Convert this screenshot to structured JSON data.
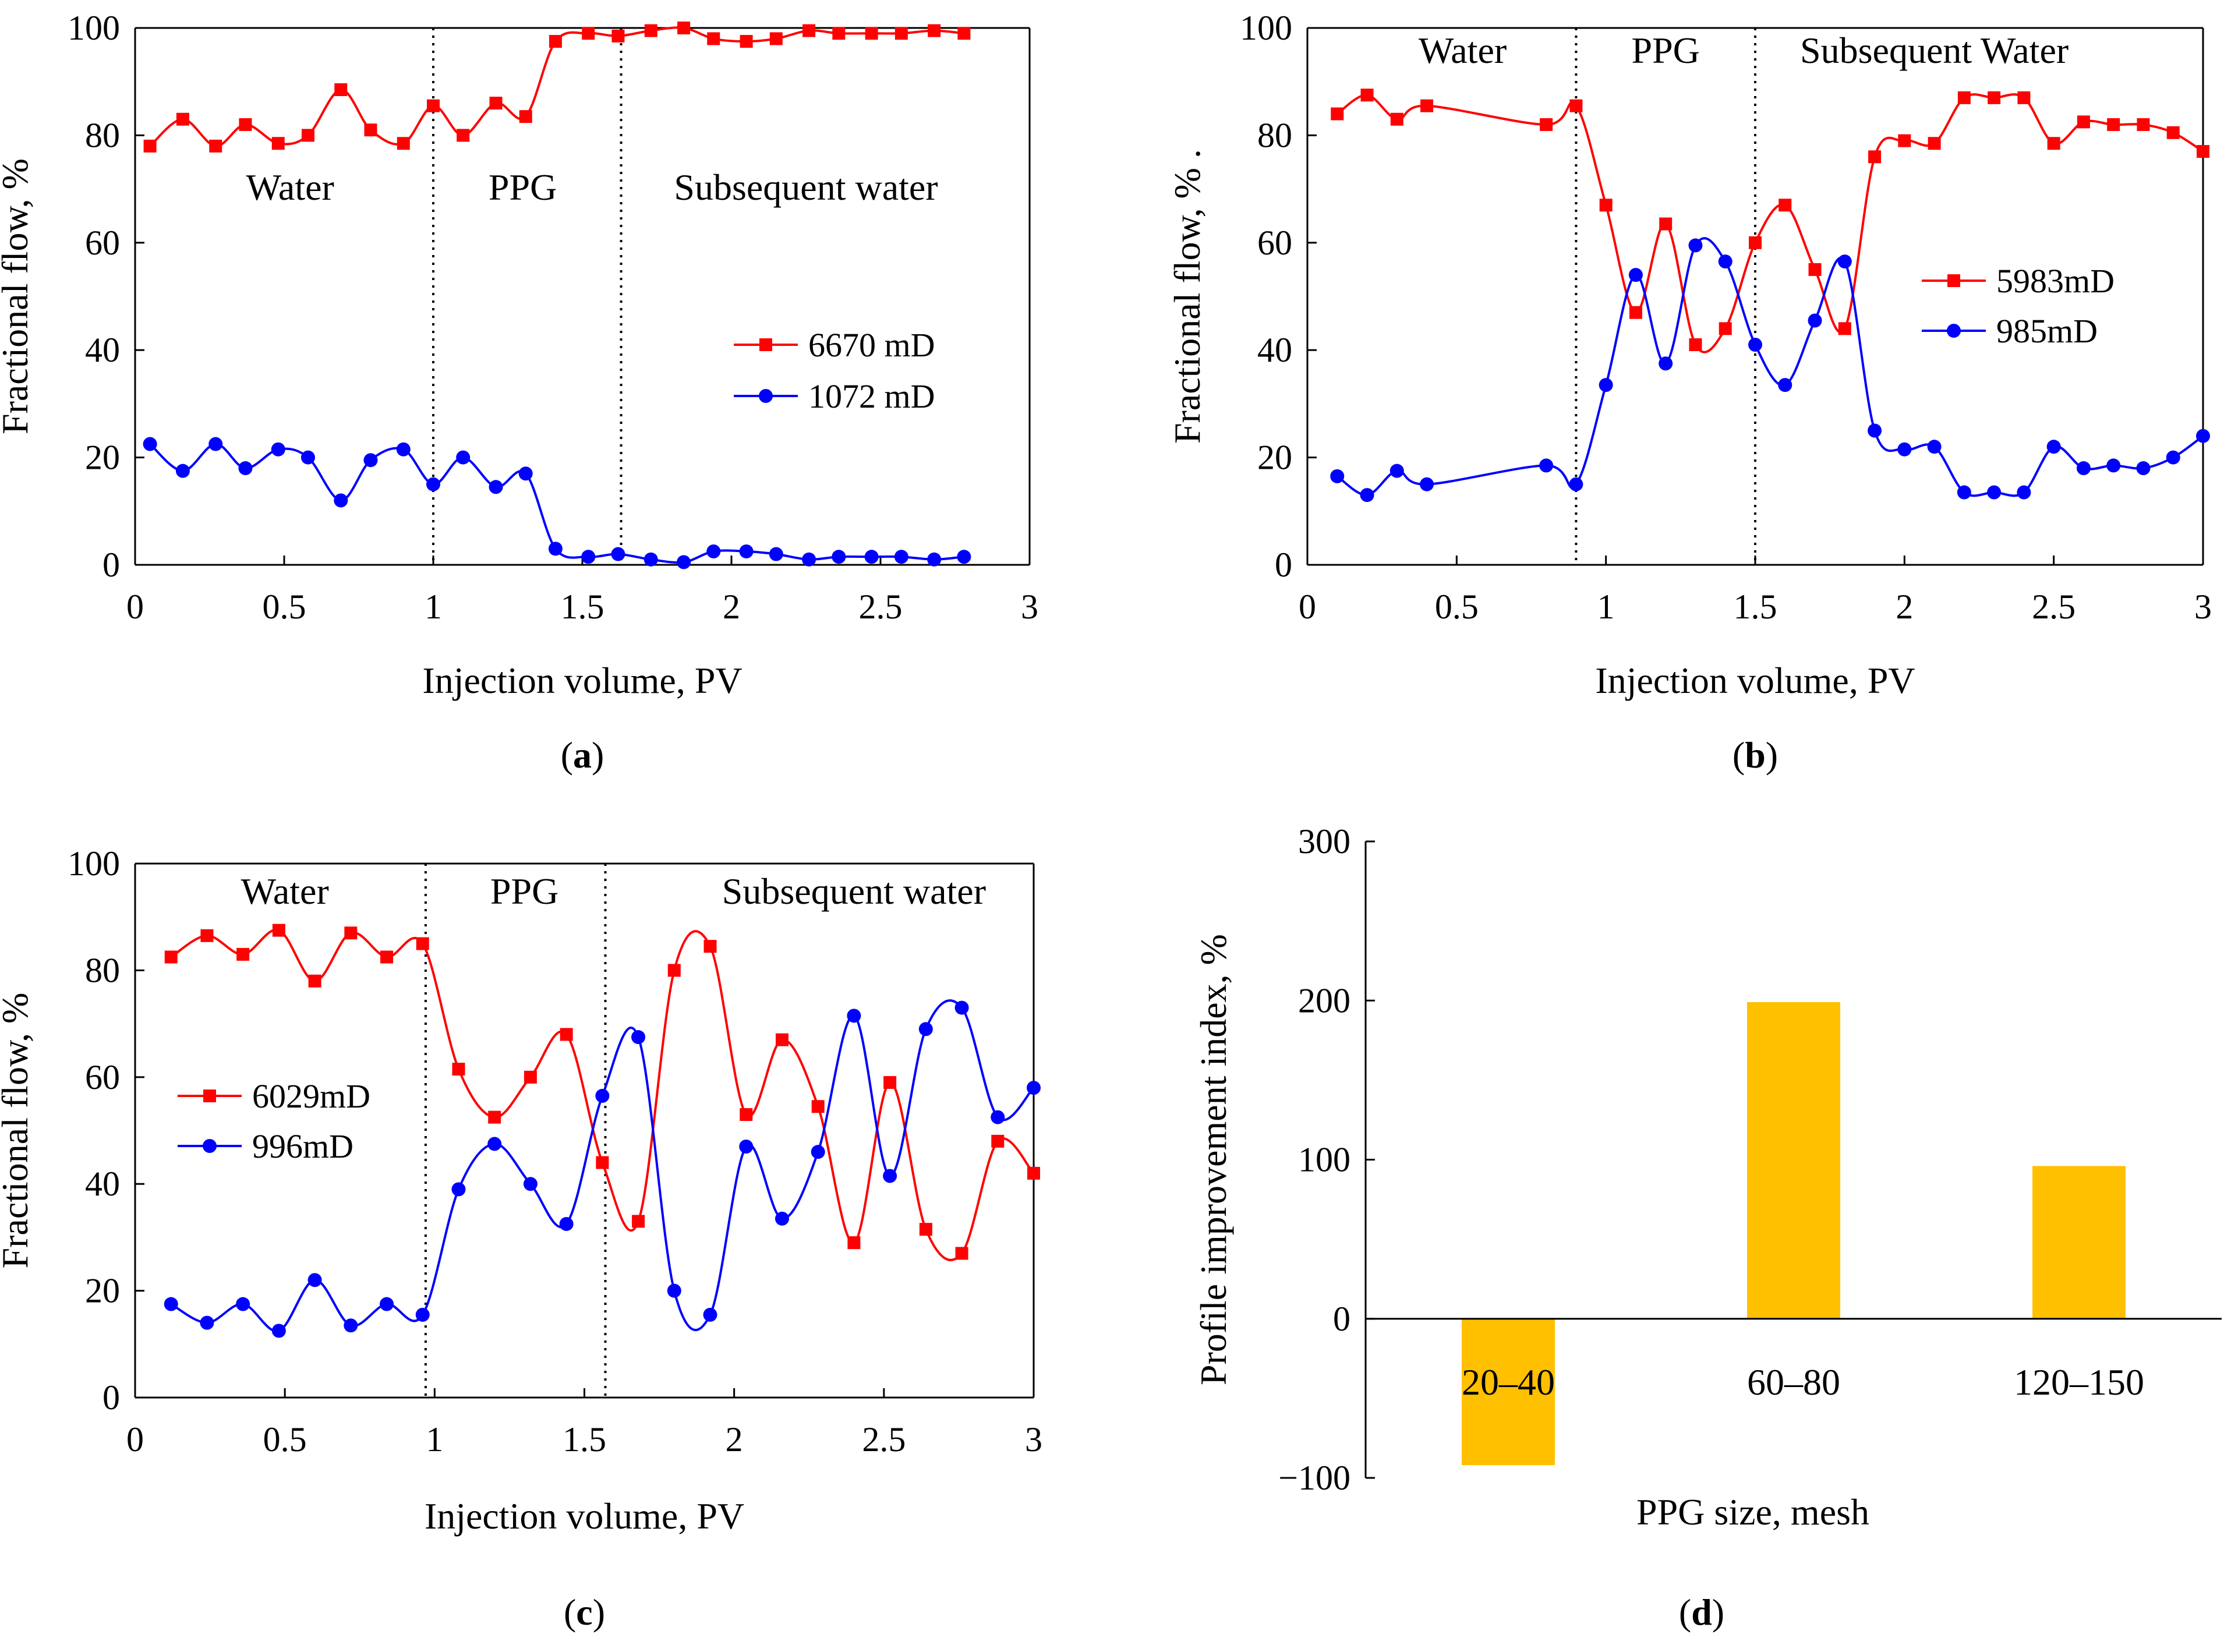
{
  "colors": {
    "series_a": "#ff0000",
    "series_b": "#0000ff",
    "bar": "#ffc000",
    "axis": "#000000"
  },
  "chart_data": [
    {
      "id": "a",
      "type": "line",
      "panel_label": "a",
      "xlabel": "Injection volume, PV",
      "ylabel": "Fractional flow, %",
      "xlim": [
        0,
        3
      ],
      "ylim": [
        0,
        100
      ],
      "xticks": [
        0,
        0.5,
        1,
        1.5,
        2,
        2.5,
        3
      ],
      "xtick_labels": [
        "0",
        "0.5",
        "1",
        "1.5",
        "2",
        "2.5",
        "3"
      ],
      "yticks": [
        0,
        20,
        40,
        60,
        80,
        100
      ],
      "ytick_labels": [
        "0",
        "20",
        "40",
        "60",
        "80",
        "100"
      ],
      "dividers": [
        1.0,
        1.63
      ],
      "region_labels": [
        {
          "text": "Water",
          "x": 0.52,
          "y": 68
        },
        {
          "text": "PPG",
          "x": 1.3,
          "y": 68
        },
        {
          "text": "Subsequent water",
          "x": 2.25,
          "y": 68
        }
      ],
      "legend_position": "center-right",
      "series": [
        {
          "name": "6670 mD",
          "color": "#ff0000",
          "marker": "square",
          "x": [
            0.05,
            0.16,
            0.27,
            0.37,
            0.48,
            0.58,
            0.69,
            0.79,
            0.9,
            1.0,
            1.1,
            1.21,
            1.31,
            1.41,
            1.52,
            1.62,
            1.73,
            1.84,
            1.94,
            2.05,
            2.15,
            2.26,
            2.36,
            2.47,
            2.57,
            2.68,
            2.78
          ],
          "y": [
            78,
            83,
            78,
            82,
            78.5,
            80,
            88.5,
            81,
            78.5,
            85.5,
            80,
            86,
            83.5,
            97.5,
            99,
            98.5,
            99.5,
            100,
            98,
            97.5,
            98,
            99.5,
            99,
            99,
            99,
            99.5,
            99
          ]
        },
        {
          "name": "1072 mD",
          "color": "#0000ff",
          "marker": "circle",
          "x": [
            0.05,
            0.16,
            0.27,
            0.37,
            0.48,
            0.58,
            0.69,
            0.79,
            0.9,
            1.0,
            1.1,
            1.21,
            1.31,
            1.41,
            1.52,
            1.62,
            1.73,
            1.84,
            1.94,
            2.05,
            2.15,
            2.26,
            2.36,
            2.47,
            2.57,
            2.68,
            2.78
          ],
          "y": [
            22.5,
            17.5,
            22.5,
            18,
            21.5,
            20,
            12,
            19.5,
            21.5,
            15,
            20,
            14.5,
            17,
            3,
            1.5,
            2,
            1,
            0.5,
            2.5,
            2.5,
            2,
            1,
            1.5,
            1.5,
            1.5,
            1,
            1.5
          ]
        }
      ]
    },
    {
      "id": "b",
      "type": "line",
      "panel_label": "b",
      "xlabel": "Injection volume, PV",
      "ylabel": "Fractional flow, % .",
      "xlim": [
        0,
        3
      ],
      "ylim": [
        0,
        100
      ],
      "xticks": [
        0,
        0.5,
        1,
        1.5,
        2,
        2.5,
        3
      ],
      "xtick_labels": [
        "0",
        "0.5",
        "1",
        "1.5",
        "2",
        "2.5",
        "3"
      ],
      "yticks": [
        0,
        20,
        40,
        60,
        80,
        100
      ],
      "ytick_labels": [
        "0",
        "20",
        "40",
        "60",
        "80",
        "100"
      ],
      "dividers": [
        0.9,
        1.5
      ],
      "region_labels": [
        {
          "text": "Water",
          "x": 0.52,
          "y": 93.5
        },
        {
          "text": "PPG",
          "x": 1.2,
          "y": 93.5
        },
        {
          "text": "Subsequent Water",
          "x": 2.1,
          "y": 93.5
        }
      ],
      "legend_position": "center-right",
      "series": [
        {
          "name": "5983mD",
          "color": "#ff0000",
          "marker": "square",
          "x": [
            0.1,
            0.2,
            0.3,
            0.4,
            0.8,
            0.9,
            1.0,
            1.1,
            1.2,
            1.3,
            1.4,
            1.5,
            1.6,
            1.7,
            1.8,
            1.9,
            2.0,
            2.1,
            2.2,
            2.3,
            2.4,
            2.5,
            2.6,
            2.7,
            2.8,
            2.9,
            3.0
          ],
          "y": [
            84,
            87.5,
            83,
            85.5,
            82,
            85.5,
            67,
            47,
            63.5,
            41,
            44,
            60,
            67,
            55,
            44,
            76,
            79,
            78.5,
            87,
            87,
            87,
            78.5,
            82.5,
            82,
            82,
            80.5,
            77
          ]
        },
        {
          "name": "985mD",
          "color": "#0000ff",
          "marker": "circle",
          "x": [
            0.1,
            0.2,
            0.3,
            0.4,
            0.8,
            0.9,
            1.0,
            1.1,
            1.2,
            1.3,
            1.4,
            1.5,
            1.6,
            1.7,
            1.8,
            1.9,
            2.0,
            2.1,
            2.2,
            2.3,
            2.4,
            2.5,
            2.6,
            2.7,
            2.8,
            2.9,
            3.0
          ],
          "y": [
            16.5,
            13,
            17.5,
            15,
            18.5,
            15,
            33.5,
            54,
            37.5,
            59.5,
            56.5,
            41,
            33.5,
            45.5,
            56.5,
            25,
            21.5,
            22,
            13.5,
            13.5,
            13.5,
            22,
            18,
            18.5,
            18,
            20,
            24
          ]
        }
      ]
    },
    {
      "id": "c",
      "type": "line",
      "panel_label": "c",
      "xlabel": "Injection volume, PV",
      "ylabel": "Fractional flow, %",
      "xlim": [
        0,
        3
      ],
      "ylim": [
        0,
        100
      ],
      "xticks": [
        0,
        0.5,
        1,
        1.5,
        2,
        2.5,
        3
      ],
      "xtick_labels": [
        "0",
        "0.5",
        "1",
        "1.5",
        "2",
        "2.5",
        "3"
      ],
      "yticks": [
        0,
        20,
        40,
        60,
        80,
        100
      ],
      "ytick_labels": [
        "0",
        "20",
        "40",
        "60",
        "80",
        "100"
      ],
      "dividers": [
        0.97,
        1.57
      ],
      "region_labels": [
        {
          "text": "Water",
          "x": 0.5,
          "y": 92.5
        },
        {
          "text": "PPG",
          "x": 1.3,
          "y": 92.5
        },
        {
          "text": "Subsequent water",
          "x": 2.4,
          "y": 92.5
        }
      ],
      "legend_position": "center-left",
      "series": [
        {
          "name": "6029mD",
          "color": "#ff0000",
          "marker": "square",
          "x": [
            0.12,
            0.24,
            0.36,
            0.48,
            0.6,
            0.72,
            0.84,
            0.96,
            1.08,
            1.2,
            1.32,
            1.44,
            1.56,
            1.68,
            1.8,
            1.92,
            2.04,
            2.16,
            2.28,
            2.4,
            2.52,
            2.64,
            2.76,
            2.88,
            3.0
          ],
          "y": [
            82.5,
            86.5,
            83,
            87.5,
            78,
            87,
            82.5,
            85,
            61.5,
            52.5,
            60,
            68,
            44,
            33,
            80,
            84.5,
            53,
            67,
            54.5,
            29,
            59,
            31.5,
            27,
            48,
            42
          ]
        },
        {
          "name": "996mD",
          "color": "#0000ff",
          "marker": "circle",
          "x": [
            0.12,
            0.24,
            0.36,
            0.48,
            0.6,
            0.72,
            0.84,
            0.96,
            1.08,
            1.2,
            1.32,
            1.44,
            1.56,
            1.68,
            1.8,
            1.92,
            2.04,
            2.16,
            2.28,
            2.4,
            2.52,
            2.64,
            2.76,
            2.88,
            3.0
          ],
          "y": [
            17.5,
            14,
            17.5,
            12.5,
            22,
            13.5,
            17.5,
            15.5,
            39,
            47.5,
            40,
            32.5,
            56.5,
            67.5,
            20,
            15.5,
            47,
            33.5,
            46,
            71.5,
            41.5,
            69,
            73,
            52.5,
            58
          ]
        }
      ]
    },
    {
      "id": "d",
      "type": "bar",
      "panel_label": "d",
      "xlabel": "PPG size, mesh",
      "ylabel": "Profile improvement index, %",
      "ylim": [
        -100,
        300
      ],
      "yticks": [
        -100,
        0,
        100,
        200,
        300
      ],
      "ytick_labels": [
        "−100",
        "0",
        "100",
        "200",
        "300"
      ],
      "categories": [
        "20–40",
        "60–80",
        "120–150"
      ],
      "values": [
        -92,
        199,
        96
      ],
      "color": "#ffc000"
    }
  ]
}
